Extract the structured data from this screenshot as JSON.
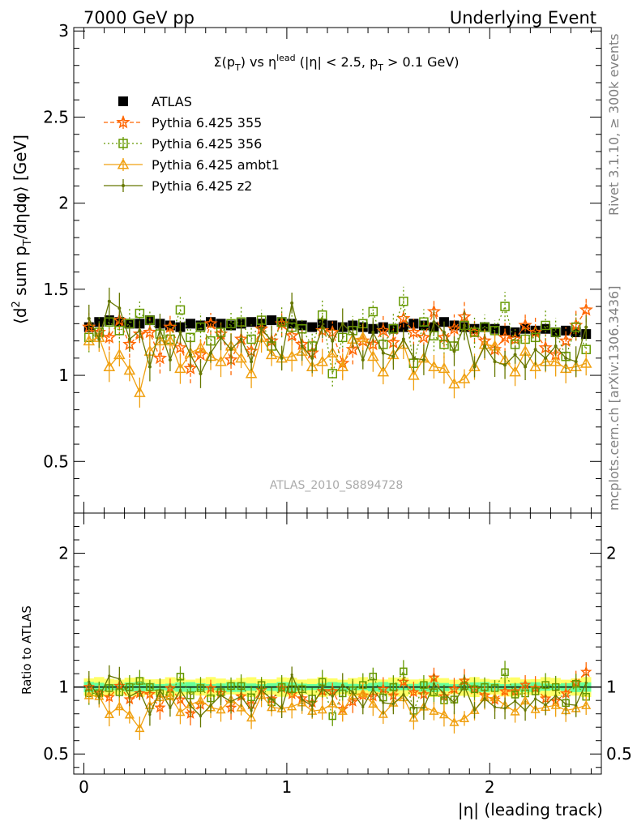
{
  "header": {
    "left": "7000 GeV pp",
    "right": "Underlying Event"
  },
  "side": {
    "top": "Rivet 3.1.10, ≥ 300k events",
    "bottom": "mcplots.cern.ch [arXiv:1306.3436]"
  },
  "chart_data": {
    "type": "scatter",
    "title": "Σ(p_T) vs η^lead (|η| < 2.5, p_T > 0.1 GeV)",
    "ylabel": "⟨d² sum p_T/dηdφ⟩ [GeV]",
    "xlabel": "|η| (leading track)",
    "ratio_ylabel": "Ratio to ATLAS",
    "watermark": "ATLAS_2010_S8894728",
    "xlim": [
      -0.05,
      2.55
    ],
    "ylim": [
      0.2,
      3.02
    ],
    "ratio_ylim": [
      0.35,
      2.3
    ],
    "x_ticks": [
      0,
      1,
      2
    ],
    "y_ticks": [
      0.5,
      1,
      1.5,
      2,
      2.5,
      3
    ],
    "ratio_ticks": [
      0.5,
      1,
      2
    ],
    "legend_position": "top-left",
    "x": [
      0.025,
      0.075,
      0.125,
      0.175,
      0.225,
      0.275,
      0.325,
      0.375,
      0.425,
      0.475,
      0.525,
      0.575,
      0.625,
      0.675,
      0.725,
      0.775,
      0.825,
      0.875,
      0.925,
      0.975,
      1.025,
      1.075,
      1.125,
      1.175,
      1.225,
      1.275,
      1.325,
      1.375,
      1.425,
      1.475,
      1.525,
      1.575,
      1.625,
      1.675,
      1.725,
      1.775,
      1.825,
      1.875,
      1.925,
      1.975,
      2.025,
      2.075,
      2.125,
      2.175,
      2.225,
      2.275,
      2.325,
      2.375,
      2.425,
      2.475
    ],
    "series": [
      {
        "name": "ATLAS",
        "color": "#000000",
        "marker": "square-filled",
        "values": [
          1.28,
          1.31,
          1.32,
          1.31,
          1.3,
          1.3,
          1.32,
          1.3,
          1.29,
          1.28,
          1.3,
          1.29,
          1.31,
          1.3,
          1.29,
          1.3,
          1.31,
          1.3,
          1.32,
          1.31,
          1.3,
          1.29,
          1.28,
          1.3,
          1.29,
          1.28,
          1.29,
          1.28,
          1.27,
          1.28,
          1.27,
          1.28,
          1.3,
          1.29,
          1.28,
          1.31,
          1.29,
          1.28,
          1.27,
          1.28,
          1.27,
          1.26,
          1.25,
          1.27,
          1.26,
          1.27,
          1.25,
          1.26,
          1.25,
          1.24
        ]
      },
      {
        "name": "Pythia 6.425 355",
        "color": "#ff6600",
        "marker": "star",
        "values": [
          1.28,
          1.25,
          1.22,
          1.32,
          1.18,
          1.24,
          1.25,
          1.1,
          1.28,
          1.16,
          1.04,
          1.12,
          1.3,
          1.24,
          1.09,
          1.21,
          1.14,
          1.27,
          1.2,
          1.3,
          1.23,
          1.18,
          1.13,
          1.26,
          1.25,
          1.07,
          1.15,
          1.2,
          1.18,
          1.26,
          1.19,
          1.33,
          1.25,
          1.22,
          1.37,
          1.22,
          1.27,
          1.34,
          1.25,
          1.2,
          1.15,
          1.22,
          1.21,
          1.29,
          1.25,
          1.16,
          1.12,
          1.2,
          1.29,
          1.38
        ]
      },
      {
        "name": "Pythia 6.425 356",
        "color": "#669900",
        "marker": "square-open",
        "values": [
          1.22,
          1.25,
          1.31,
          1.26,
          1.3,
          1.36,
          1.32,
          1.24,
          1.21,
          1.38,
          1.22,
          1.28,
          1.2,
          1.25,
          1.3,
          1.31,
          1.21,
          1.32,
          1.17,
          1.31,
          1.28,
          1.27,
          1.17,
          1.35,
          1.01,
          1.22,
          1.26,
          1.3,
          1.37,
          1.18,
          1.27,
          1.43,
          1.07,
          1.31,
          1.23,
          1.18,
          1.17,
          1.29,
          1.25,
          1.28,
          1.26,
          1.4,
          1.18,
          1.21,
          1.22,
          1.29,
          1.25,
          1.11,
          1.28,
          1.15
        ]
      },
      {
        "name": "Pythia 6.425 ambt1",
        "color": "#f0a010",
        "marker": "triangle-open",
        "values": [
          1.2,
          1.22,
          1.05,
          1.12,
          1.03,
          0.9,
          1.14,
          1.2,
          1.2,
          1.04,
          1.13,
          1.16,
          1.11,
          1.08,
          1.17,
          1.1,
          1.01,
          1.22,
          1.12,
          1.1,
          1.11,
          1.14,
          1.05,
          1.08,
          1.13,
          1.05,
          1.21,
          1.22,
          1.11,
          1.02,
          1.12,
          1.18,
          1.0,
          1.1,
          1.05,
          1.04,
          0.95,
          0.98,
          1.05,
          1.18,
          1.17,
          1.09,
          1.02,
          1.14,
          1.05,
          1.08,
          1.08,
          1.04,
          1.05,
          1.07
        ]
      },
      {
        "name": "Pythia 6.425 z2",
        "color": "#667700",
        "marker": "dot",
        "values": [
          1.33,
          1.21,
          1.43,
          1.39,
          1.21,
          1.26,
          1.05,
          1.27,
          1.09,
          1.25,
          1.12,
          1.01,
          1.13,
          1.22,
          1.15,
          1.21,
          1.08,
          1.27,
          1.2,
          1.1,
          1.42,
          1.17,
          1.1,
          1.28,
          1.2,
          1.3,
          1.24,
          1.09,
          1.25,
          1.13,
          1.11,
          1.21,
          1.1,
          1.09,
          1.31,
          1.25,
          1.14,
          1.29,
          1.05,
          1.17,
          1.08,
          1.06,
          1.12,
          1.05,
          1.15,
          1.1,
          1.17,
          1.1,
          1.08,
          1.28
        ]
      }
    ]
  }
}
